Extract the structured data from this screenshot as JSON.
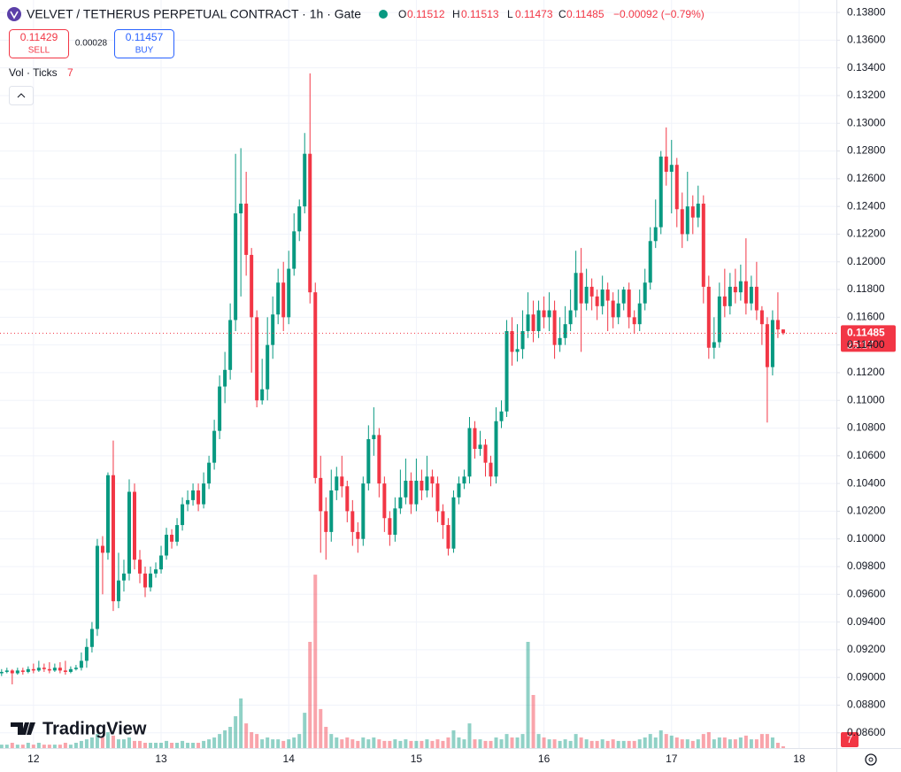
{
  "header": {
    "title": "VELVET / TETHERUS PERPETUAL CONTRACT · 1h · Gate",
    "ohlc_labels": [
      "O",
      "H",
      "L",
      "C"
    ],
    "change": "−0.00092 (−0.79%)"
  },
  "trade": {
    "sell_price": "0.11429",
    "sell": "SELL",
    "spread": "0.00028",
    "buy_price": "0.11457",
    "buy": "BUY"
  },
  "indicator": {
    "name": "Vol · Ticks"
  },
  "price_label": {
    "countdown": "25:17"
  },
  "watermark": "TradingView",
  "chart_data": {
    "type": "candlestick",
    "up_color": "#089981",
    "down_color": "#f23645",
    "grid": true,
    "xlim": [
      -6.3,
      151
    ],
    "ylim": [
      0.0849,
      0.1389
    ],
    "xticks": [
      {
        "value": 0,
        "label": "12"
      },
      {
        "value": 24,
        "label": "13"
      },
      {
        "value": 48,
        "label": "14"
      },
      {
        "value": 72,
        "label": "15"
      },
      {
        "value": 96,
        "label": "16"
      },
      {
        "value": 120,
        "label": "17"
      },
      {
        "value": 144,
        "label": "18"
      }
    ],
    "yticks": [
      {
        "value": 0.086,
        "label": "0.08600"
      },
      {
        "value": 0.088,
        "label": "0.08800"
      },
      {
        "value": 0.09,
        "label": "0.09000"
      },
      {
        "value": 0.092,
        "label": "0.09200"
      },
      {
        "value": 0.094,
        "label": "0.09400"
      },
      {
        "value": 0.096,
        "label": "0.09600"
      },
      {
        "value": 0.098,
        "label": "0.09800"
      },
      {
        "value": 0.1,
        "label": "0.10000"
      },
      {
        "value": 0.102,
        "label": "0.10200"
      },
      {
        "value": 0.104,
        "label": "0.10400"
      },
      {
        "value": 0.106,
        "label": "0.10600"
      },
      {
        "value": 0.108,
        "label": "0.10800"
      },
      {
        "value": 0.11,
        "label": "0.11000"
      },
      {
        "value": 0.112,
        "label": "0.11200"
      },
      {
        "value": 0.114,
        "label": "0.11400"
      },
      {
        "value": 0.116,
        "label": "0.11600"
      },
      {
        "value": 0.118,
        "label": "0.11800"
      },
      {
        "value": 0.12,
        "label": "0.12000"
      },
      {
        "value": 0.122,
        "label": "0.12200"
      },
      {
        "value": 0.124,
        "label": "0.12400"
      },
      {
        "value": 0.126,
        "label": "0.12600"
      },
      {
        "value": 0.128,
        "label": "0.12800"
      },
      {
        "value": 0.13,
        "label": "0.13000"
      },
      {
        "value": 0.132,
        "label": "0.13200"
      },
      {
        "value": 0.134,
        "label": "0.13400"
      },
      {
        "value": 0.136,
        "label": "0.13600"
      },
      {
        "value": 0.138,
        "label": "0.13800"
      }
    ],
    "x": [
      -6,
      -5,
      -4,
      -3,
      -2,
      -1,
      0,
      1,
      2,
      3,
      4,
      5,
      6,
      7,
      8,
      9,
      10,
      11,
      12,
      13,
      14,
      15,
      16,
      17,
      18,
      19,
      20,
      21,
      22,
      23,
      24,
      25,
      26,
      27,
      28,
      29,
      30,
      31,
      32,
      33,
      34,
      35,
      36,
      37,
      38,
      39,
      40,
      41,
      42,
      43,
      44,
      45,
      46,
      47,
      48,
      49,
      50,
      51,
      52,
      53,
      54,
      55,
      56,
      57,
      58,
      59,
      60,
      61,
      62,
      63,
      64,
      65,
      66,
      67,
      68,
      69,
      70,
      71,
      72,
      73,
      74,
      75,
      76,
      77,
      78,
      79,
      80,
      81,
      82,
      83,
      84,
      85,
      86,
      87,
      88,
      89,
      90,
      91,
      92,
      93,
      94,
      95,
      96,
      97,
      98,
      99,
      100,
      101,
      102,
      103,
      104,
      105,
      106,
      107,
      108,
      109,
      110,
      111,
      112,
      113,
      114,
      115,
      116,
      117,
      118,
      119,
      120,
      121,
      122,
      123,
      124,
      125,
      126,
      127,
      128,
      129,
      130,
      131,
      132,
      133,
      134,
      135,
      136,
      137,
      138,
      139,
      140,
      141
    ],
    "open": [
      0.0903,
      0.0904,
      0.0905,
      0.0903,
      0.0905,
      0.0904,
      0.0906,
      0.0905,
      0.0907,
      0.0906,
      0.0905,
      0.0907,
      0.0905,
      0.0904,
      0.0906,
      0.0907,
      0.0912,
      0.0922,
      0.0935,
      0.0995,
      0.099,
      0.1046,
      0.0955,
      0.097,
      0.0975,
      0.1034,
      0.0985,
      0.0975,
      0.0965,
      0.0975,
      0.0978,
      0.0988,
      0.1003,
      0.0998,
      0.101,
      0.1025,
      0.1028,
      0.1035,
      0.1025,
      0.104,
      0.1055,
      0.1078,
      0.111,
      0.1122,
      0.1158,
      0.1235,
      0.1242,
      0.1205,
      0.116,
      0.11,
      0.1108,
      0.114,
      0.1162,
      0.1185,
      0.116,
      0.1195,
      0.1222,
      0.124,
      0.1278,
      0.1178,
      0.1044,
      0.102,
      0.1005,
      0.1035,
      0.1045,
      0.1038,
      0.102,
      0.1005,
      0.1,
      0.104,
      0.1072,
      0.1075,
      0.104,
      0.1015,
      0.1003,
      0.1022,
      0.103,
      0.1042,
      0.1025,
      0.1042,
      0.1035,
      0.1045,
      0.104,
      0.102,
      0.101,
      0.0993,
      0.103,
      0.104,
      0.1045,
      0.108,
      0.1065,
      0.1068,
      0.1055,
      0.1045,
      0.1085,
      0.1092,
      0.115,
      0.1135,
      0.1137,
      0.115,
      0.1162,
      0.115,
      0.1165,
      0.116,
      0.1165,
      0.114,
      0.1145,
      0.1155,
      0.1165,
      0.1192,
      0.117,
      0.1182,
      0.1175,
      0.1168,
      0.118,
      0.1172,
      0.116,
      0.117,
      0.118,
      0.116,
      0.1155,
      0.117,
      0.1185,
      0.1215,
      0.1225,
      0.1276,
      0.1265,
      0.127,
      0.1238,
      0.122,
      0.124,
      0.1232,
      0.1242,
      0.1182,
      0.1138,
      0.1142,
      0.1175,
      0.1168,
      0.1182,
      0.1178,
      0.1186,
      0.117,
      0.1182,
      0.1165,
      0.1155,
      0.1124,
      0.1158,
      0.11512
    ],
    "high": [
      0.0906,
      0.0907,
      0.0906,
      0.0907,
      0.0907,
      0.0908,
      0.091,
      0.0912,
      0.091,
      0.0911,
      0.091,
      0.0911,
      0.0912,
      0.0908,
      0.0909,
      0.0918,
      0.0928,
      0.094,
      0.1,
      0.1002,
      0.1048,
      0.1071,
      0.099,
      0.0985,
      0.1043,
      0.104,
      0.0992,
      0.098,
      0.098,
      0.0983,
      0.0995,
      0.1008,
      0.1007,
      0.1015,
      0.103,
      0.1035,
      0.104,
      0.104,
      0.1048,
      0.106,
      0.1086,
      0.1118,
      0.1135,
      0.117,
      0.1278,
      0.1282,
      0.1265,
      0.121,
      0.1165,
      0.113,
      0.116,
      0.1175,
      0.1195,
      0.12,
      0.1208,
      0.1235,
      0.1245,
      0.1293,
      0.1336,
      0.1185,
      0.106,
      0.103,
      0.105,
      0.1052,
      0.106,
      0.1042,
      0.1028,
      0.1012,
      0.1045,
      0.1082,
      0.1095,
      0.108,
      0.1045,
      0.102,
      0.103,
      0.105,
      0.1058,
      0.1048,
      0.1058,
      0.105,
      0.106,
      0.105,
      0.1045,
      0.1025,
      0.1015,
      0.1035,
      0.1045,
      0.105,
      0.1088,
      0.1085,
      0.1078,
      0.1072,
      0.106,
      0.1095,
      0.11,
      0.1158,
      0.116,
      0.1155,
      0.1165,
      0.1178,
      0.1172,
      0.1172,
      0.1175,
      0.1178,
      0.1172,
      0.116,
      0.1168,
      0.118,
      0.1208,
      0.121,
      0.1195,
      0.1188,
      0.118,
      0.119,
      0.1185,
      0.1178,
      0.118,
      0.1182,
      0.1185,
      0.1165,
      0.118,
      0.1195,
      0.1225,
      0.1245,
      0.128,
      0.1297,
      0.1288,
      0.1275,
      0.125,
      0.1265,
      0.1248,
      0.1255,
      0.1248,
      0.119,
      0.116,
      0.1185,
      0.1195,
      0.1192,
      0.1195,
      0.1198,
      0.1217,
      0.119,
      0.12,
      0.1168,
      0.116,
      0.1165,
      0.1178,
      0.11513
    ],
    "low": [
      0.0901,
      0.0903,
      0.0895,
      0.0902,
      0.0902,
      0.0903,
      0.0903,
      0.0904,
      0.0904,
      0.0903,
      0.0904,
      0.0903,
      0.0902,
      0.0903,
      0.0905,
      0.0905,
      0.0907,
      0.0918,
      0.093,
      0.096,
      0.0985,
      0.0948,
      0.095,
      0.0962,
      0.097,
      0.0978,
      0.0968,
      0.0958,
      0.0962,
      0.0972,
      0.0975,
      0.0985,
      0.0993,
      0.0995,
      0.1006,
      0.102,
      0.1024,
      0.102,
      0.1022,
      0.1036,
      0.105,
      0.1072,
      0.1098,
      0.1115,
      0.115,
      0.1175,
      0.119,
      0.112,
      0.1095,
      0.1097,
      0.11,
      0.113,
      0.1155,
      0.115,
      0.1155,
      0.119,
      0.1215,
      0.1235,
      0.117,
      0.104,
      0.099,
      0.0985,
      0.0998,
      0.1028,
      0.103,
      0.1012,
      0.0995,
      0.099,
      0.0995,
      0.1035,
      0.106,
      0.103,
      0.1005,
      0.0995,
      0.0998,
      0.1018,
      0.1025,
      0.1018,
      0.102,
      0.1028,
      0.103,
      0.103,
      0.1012,
      0.1,
      0.0988,
      0.099,
      0.1025,
      0.1036,
      0.104,
      0.1058,
      0.106,
      0.1045,
      0.1038,
      0.104,
      0.108,
      0.1088,
      0.1125,
      0.1128,
      0.113,
      0.1145,
      0.1142,
      0.1145,
      0.1152,
      0.115,
      0.113,
      0.1135,
      0.114,
      0.115,
      0.116,
      0.1135,
      0.1165,
      0.1165,
      0.1158,
      0.1162,
      0.115,
      0.1152,
      0.1155,
      0.1165,
      0.1152,
      0.1148,
      0.115,
      0.1165,
      0.118,
      0.121,
      0.122,
      0.1255,
      0.1235,
      0.1225,
      0.121,
      0.1215,
      0.122,
      0.1225,
      0.117,
      0.113,
      0.113,
      0.1138,
      0.116,
      0.1162,
      0.117,
      0.1172,
      0.1162,
      0.1165,
      0.1158,
      0.114,
      0.1084,
      0.1118,
      0.1145,
      0.11473
    ],
    "close": [
      0.0904,
      0.0905,
      0.0903,
      0.0905,
      0.0904,
      0.0906,
      0.0905,
      0.0907,
      0.0906,
      0.0905,
      0.0907,
      0.0905,
      0.0904,
      0.0906,
      0.0907,
      0.0912,
      0.0922,
      0.0935,
      0.0995,
      0.099,
      0.1046,
      0.0955,
      0.097,
      0.0975,
      0.1034,
      0.0985,
      0.0975,
      0.0965,
      0.0975,
      0.0978,
      0.0988,
      0.1003,
      0.0998,
      0.101,
      0.1025,
      0.1028,
      0.1035,
      0.1025,
      0.104,
      0.1055,
      0.1078,
      0.111,
      0.1122,
      0.1158,
      0.1235,
      0.1242,
      0.1205,
      0.116,
      0.11,
      0.1108,
      0.114,
      0.1162,
      0.1185,
      0.116,
      0.1195,
      0.1222,
      0.124,
      0.1278,
      0.1178,
      0.1044,
      0.102,
      0.1005,
      0.1035,
      0.1045,
      0.1038,
      0.102,
      0.1005,
      0.1,
      0.104,
      0.1072,
      0.1075,
      0.104,
      0.1015,
      0.1003,
      0.1022,
      0.103,
      0.1042,
      0.1025,
      0.1042,
      0.1035,
      0.1045,
      0.104,
      0.102,
      0.101,
      0.0993,
      0.103,
      0.104,
      0.1045,
      0.108,
      0.1065,
      0.1068,
      0.1055,
      0.1045,
      0.1085,
      0.1092,
      0.115,
      0.1135,
      0.1137,
      0.115,
      0.1162,
      0.115,
      0.1165,
      0.116,
      0.1165,
      0.114,
      0.1145,
      0.1155,
      0.1165,
      0.1192,
      0.117,
      0.1182,
      0.1175,
      0.1168,
      0.118,
      0.1172,
      0.116,
      0.117,
      0.118,
      0.116,
      0.1155,
      0.117,
      0.1185,
      0.1215,
      0.1225,
      0.1276,
      0.1265,
      0.127,
      0.1238,
      0.122,
      0.124,
      0.1232,
      0.1242,
      0.1182,
      0.1138,
      0.1142,
      0.1175,
      0.1168,
      0.1182,
      0.1178,
      0.1186,
      0.117,
      0.1182,
      0.1165,
      0.1155,
      0.1124,
      0.1158,
      0.11512,
      0.11485
    ],
    "volume": [
      13,
      13,
      20,
      13,
      13,
      20,
      13,
      20,
      13,
      13,
      13,
      13,
      20,
      13,
      20,
      27,
      33,
      40,
      53,
      40,
      60,
      47,
      33,
      33,
      40,
      27,
      27,
      20,
      20,
      20,
      20,
      27,
      20,
      20,
      27,
      20,
      20,
      20,
      27,
      33,
      40,
      53,
      67,
      80,
      120,
      187,
      93,
      60,
      53,
      33,
      40,
      33,
      33,
      27,
      33,
      40,
      53,
      133,
      400,
      653,
      147,
      80,
      53,
      40,
      33,
      40,
      33,
      27,
      40,
      33,
      40,
      33,
      27,
      27,
      33,
      27,
      33,
      27,
      27,
      27,
      33,
      27,
      33,
      27,
      40,
      67,
      40,
      33,
      93,
      33,
      33,
      27,
      27,
      40,
      33,
      53,
      40,
      40,
      53,
      400,
      200,
      53,
      40,
      33,
      33,
      27,
      33,
      27,
      53,
      40,
      33,
      27,
      27,
      33,
      27,
      33,
      27,
      27,
      27,
      27,
      33,
      40,
      53,
      40,
      67,
      53,
      47,
      40,
      33,
      33,
      27,
      33,
      53,
      60,
      33,
      40,
      40,
      33,
      33,
      40,
      47,
      33,
      33,
      53,
      53,
      40,
      20,
      7
    ]
  }
}
